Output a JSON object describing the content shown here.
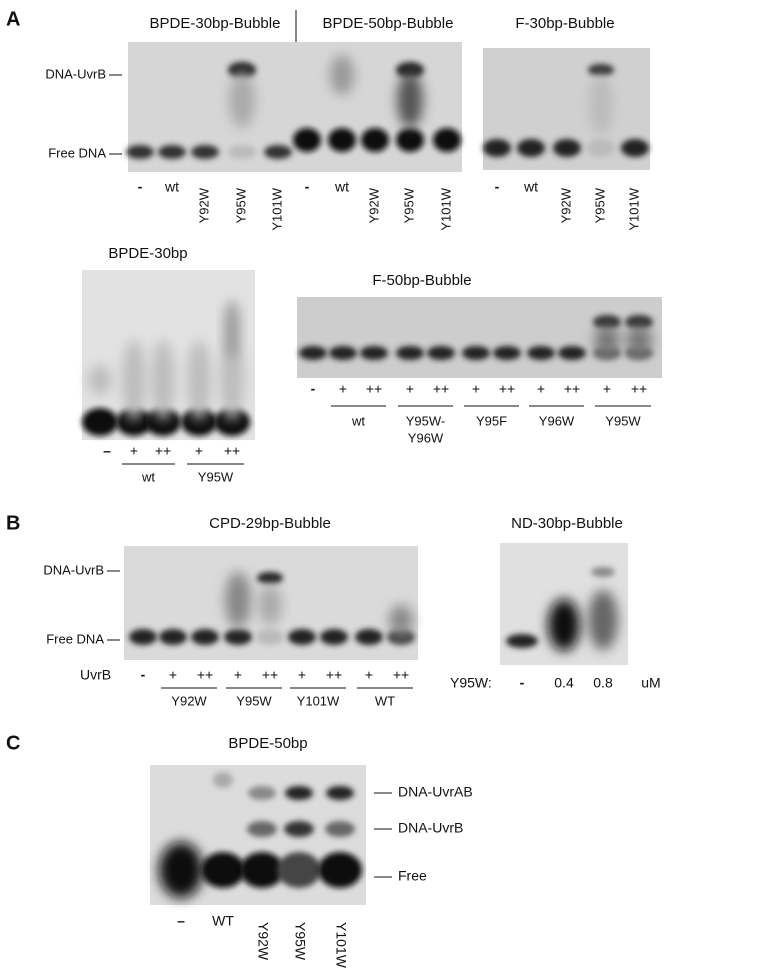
{
  "panel_a": {
    "label": "A",
    "gel_1": {
      "titles": [
        "BPDE-30bp-Bubble",
        "BPDE-50bp-Bubble"
      ],
      "band_labels": [
        "DNA-UvrB",
        "Free DNA"
      ],
      "lanes": [
        "-",
        "wt",
        "Y92W",
        "Y95W",
        "Y101W",
        "-",
        "wt",
        "Y92W",
        "Y95W",
        "Y101W"
      ]
    },
    "gel_2": {
      "title": "F-30bp-Bubble",
      "lanes": [
        "-",
        "wt",
        "Y92W",
        "Y95W",
        "Y101W"
      ]
    },
    "gel_3": {
      "title": "BPDE-30bp",
      "lanes": [
        "–",
        "+",
        "++",
        "+",
        "++"
      ],
      "groups": [
        "wt",
        "Y95W"
      ]
    },
    "gel_4": {
      "title": "F-50bp-Bubble",
      "lanes": [
        "-",
        "+",
        "++",
        "+",
        "++",
        "+",
        "++",
        "+",
        "++",
        "+",
        "++"
      ],
      "groups": [
        [
          "wt"
        ],
        [
          "Y95W-",
          "Y96W"
        ],
        [
          "Y95F"
        ],
        [
          "Y96W"
        ],
        [
          "Y95W"
        ]
      ]
    }
  },
  "panel_b": {
    "label": "B",
    "gel_1": {
      "title": "CPD-29bp-Bubble",
      "band_labels": [
        "DNA-UvrB",
        "Free DNA"
      ],
      "row_label": "UvrB",
      "lanes": [
        "-",
        "+",
        "++",
        "+",
        "++",
        "+",
        "++",
        "+",
        "++"
      ],
      "groups": [
        "Y92W",
        "Y95W",
        "Y101W",
        "WT"
      ]
    },
    "gel_2": {
      "title": "ND-30bp-Bubble",
      "row_label": "Y95W:",
      "lanes": [
        "-",
        "0.4",
        "0.8"
      ],
      "unit": "uM"
    }
  },
  "panel_c": {
    "label": "C",
    "title": "BPDE-50bp",
    "band_labels": [
      "DNA-UvrAB",
      "DNA-UvrB",
      "Free"
    ],
    "lanes": [
      "–",
      "WT",
      "Y92W",
      "Y95W",
      "Y101W"
    ]
  }
}
